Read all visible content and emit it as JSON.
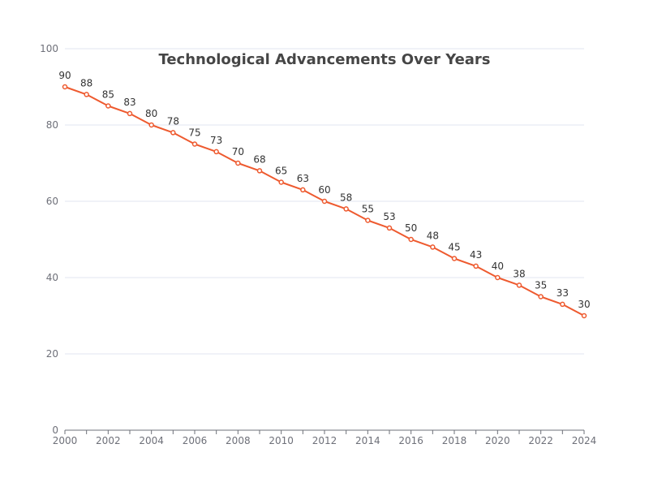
{
  "chart_data": {
    "type": "line",
    "title": "Technological Advancements Over Years",
    "xlabel": "",
    "ylabel": "",
    "x": [
      2000,
      2001,
      2002,
      2003,
      2004,
      2005,
      2006,
      2007,
      2008,
      2009,
      2010,
      2011,
      2012,
      2013,
      2014,
      2015,
      2016,
      2017,
      2018,
      2019,
      2020,
      2021,
      2022,
      2023,
      2024
    ],
    "x_tick_labels": [
      "2000",
      "2002",
      "2004",
      "2006",
      "2008",
      "2010",
      "2012",
      "2014",
      "2016",
      "2018",
      "2020",
      "2022",
      "2024"
    ],
    "y_tick_labels": [
      "0",
      "20",
      "40",
      "60",
      "80",
      "100"
    ],
    "ylim": [
      0,
      100
    ],
    "xlim": [
      2000,
      2024
    ],
    "grid": true,
    "series": [
      {
        "values": [
          90,
          88,
          85,
          83,
          80,
          78,
          75,
          73,
          70,
          68,
          65,
          63,
          60,
          58,
          55,
          53,
          50,
          48,
          45,
          43,
          40,
          38,
          35,
          33,
          30
        ],
        "color": "#ee5a2f",
        "show_labels": true
      }
    ]
  }
}
